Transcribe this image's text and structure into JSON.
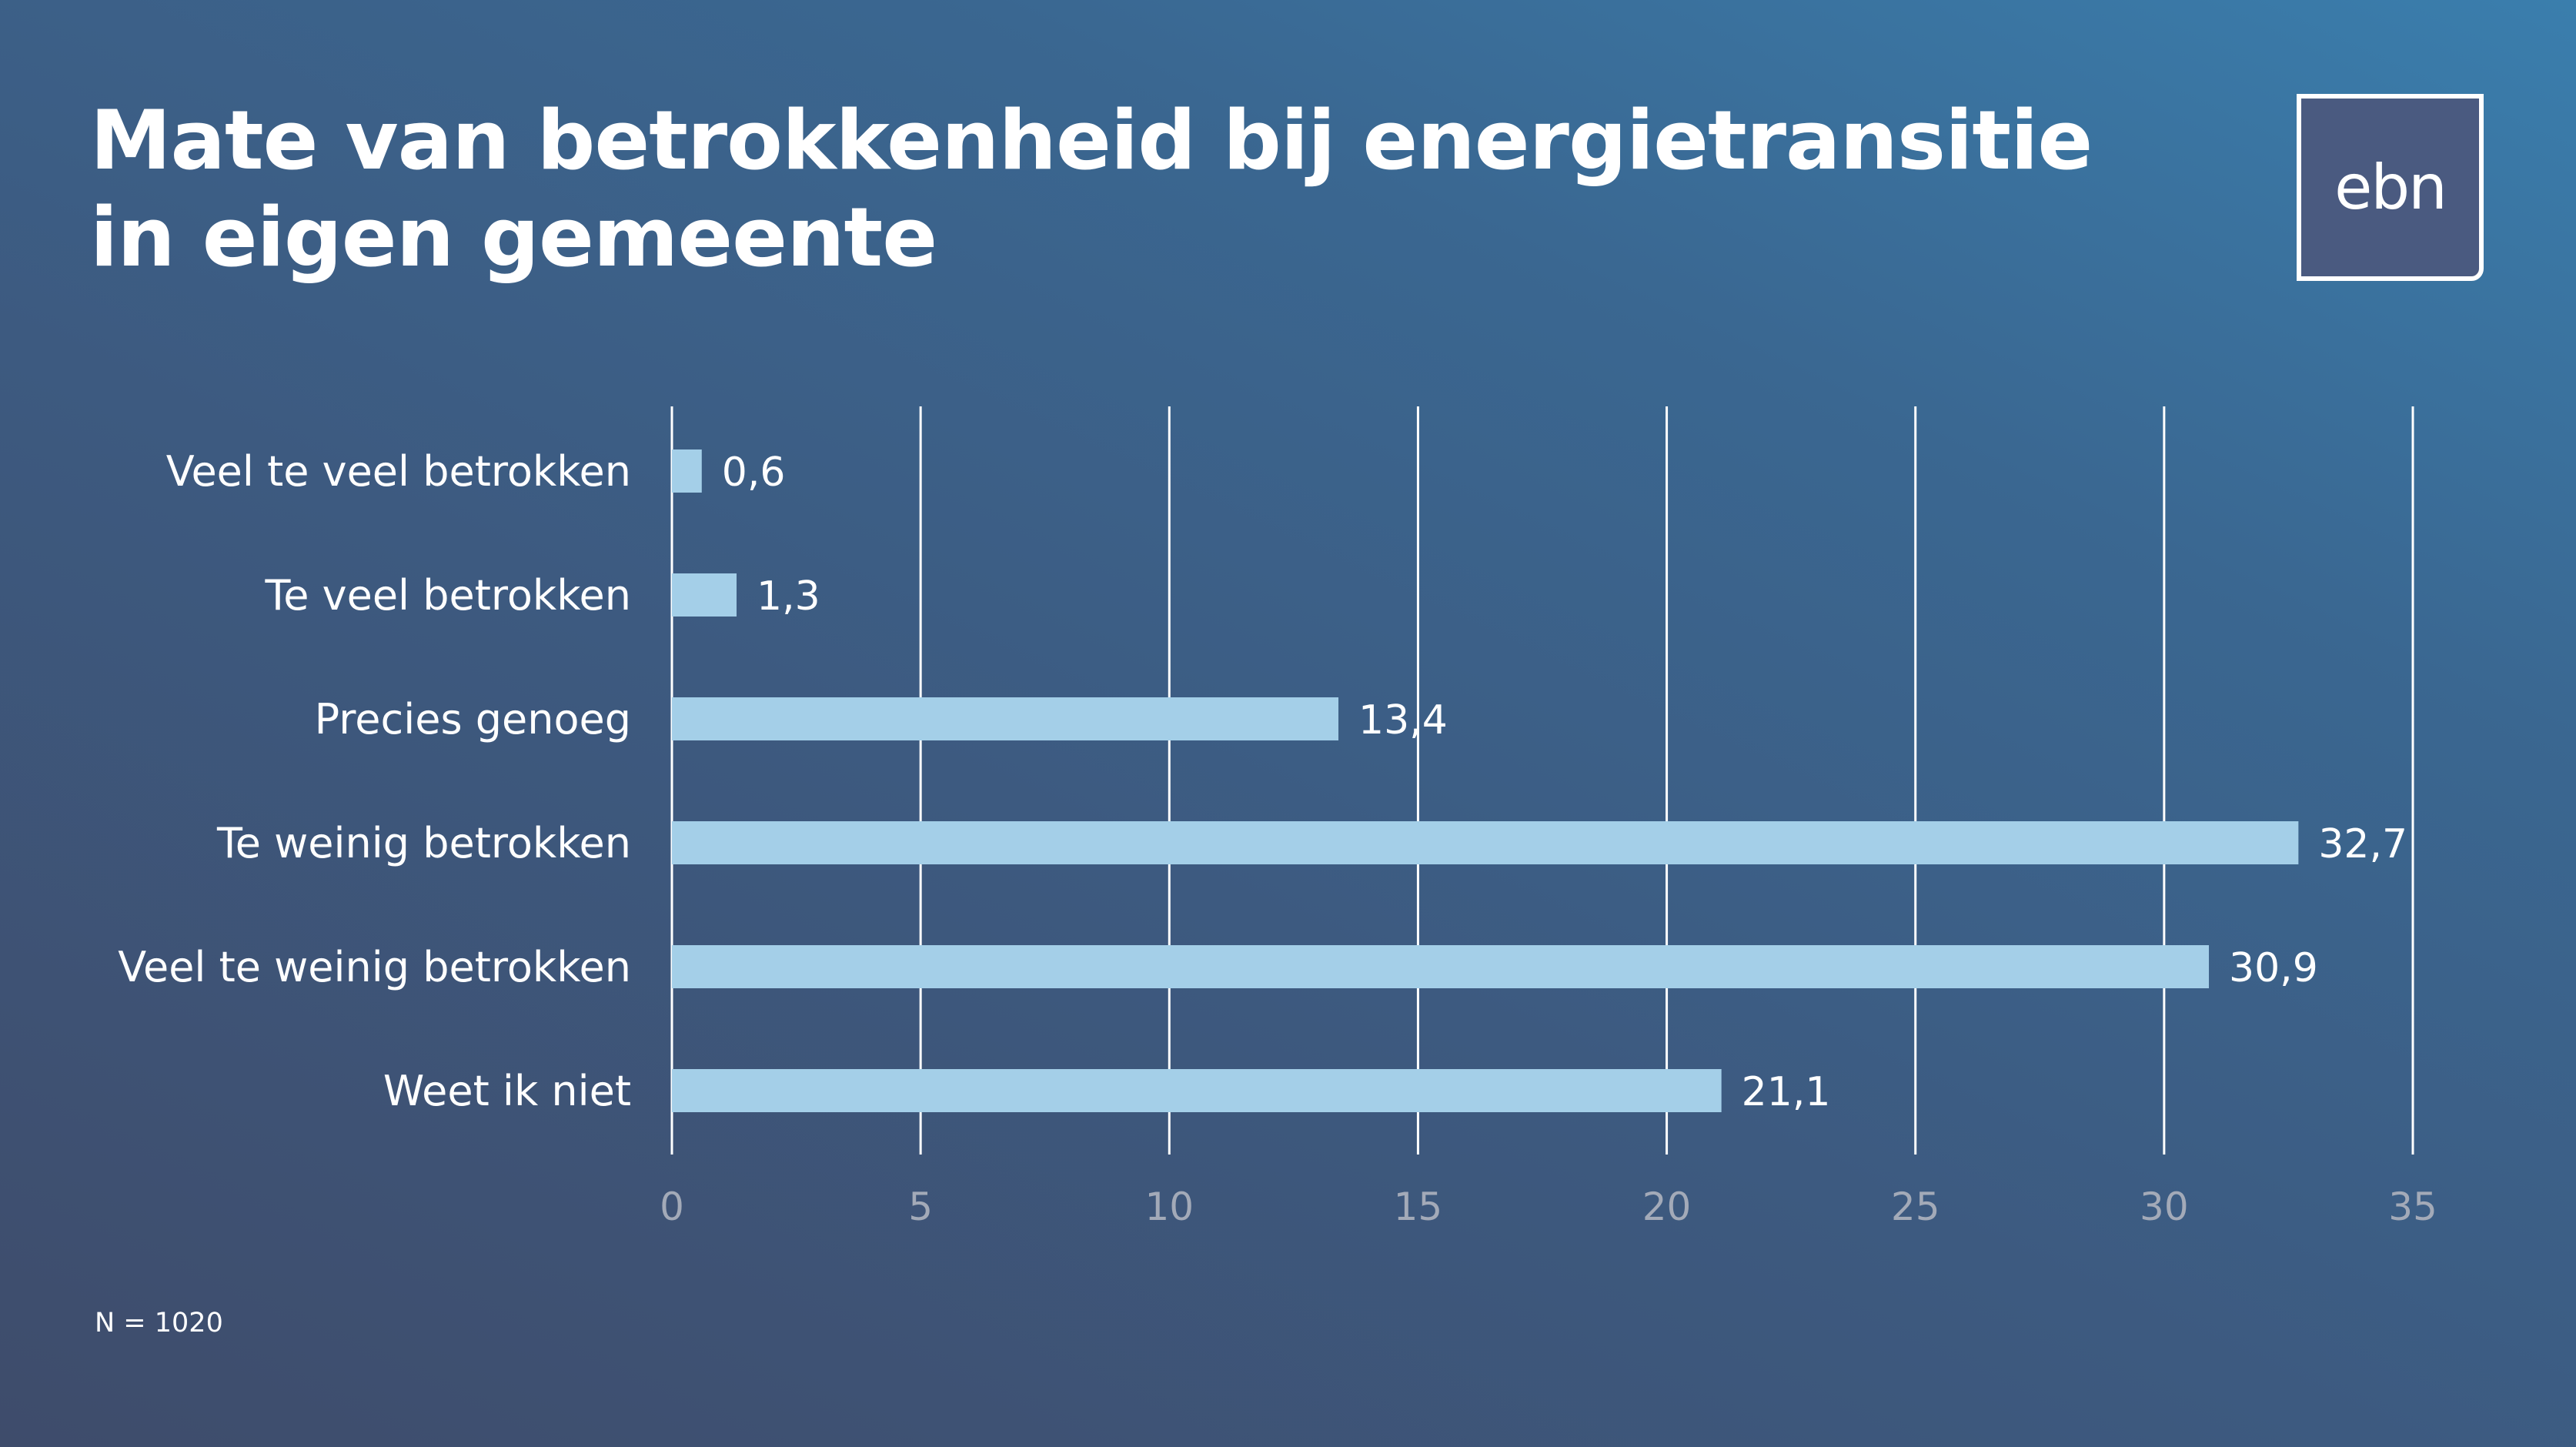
{
  "slide": {
    "title": "Mate van betrokkenheid bij energietransitie in eigen gemeente",
    "footnote": "N = 1020",
    "logo_text": "ebn"
  },
  "colors": {
    "background_top": "#3a7ead",
    "background_bottom": "#3e4c6b",
    "bar": "#a4cfe8",
    "gridline": "#ffffff",
    "tick_label": "#a3aab8",
    "text": "#ffffff"
  },
  "chart_data": {
    "type": "bar",
    "orientation": "horizontal",
    "title": "",
    "xlabel": "",
    "ylabel": "",
    "categories": [
      "Veel te veel betrokken",
      "Te veel betrokken",
      "Precies genoeg",
      "Te weinig betrokken",
      "Veel te weinig betrokken",
      "Weet ik niet"
    ],
    "values": [
      0.6,
      1.3,
      13.4,
      32.7,
      30.9,
      21.1
    ],
    "value_labels": [
      "0,6",
      "1,3",
      "13,4",
      "32,7",
      "30,9",
      "21,1"
    ],
    "xlim": [
      0,
      35
    ],
    "xticks": [
      0,
      5,
      10,
      15,
      20,
      25,
      30,
      35
    ],
    "xtick_labels": [
      "0",
      "5",
      "10",
      "15",
      "20",
      "25",
      "30",
      "35"
    ],
    "grid": "vertical",
    "legend": "none"
  }
}
